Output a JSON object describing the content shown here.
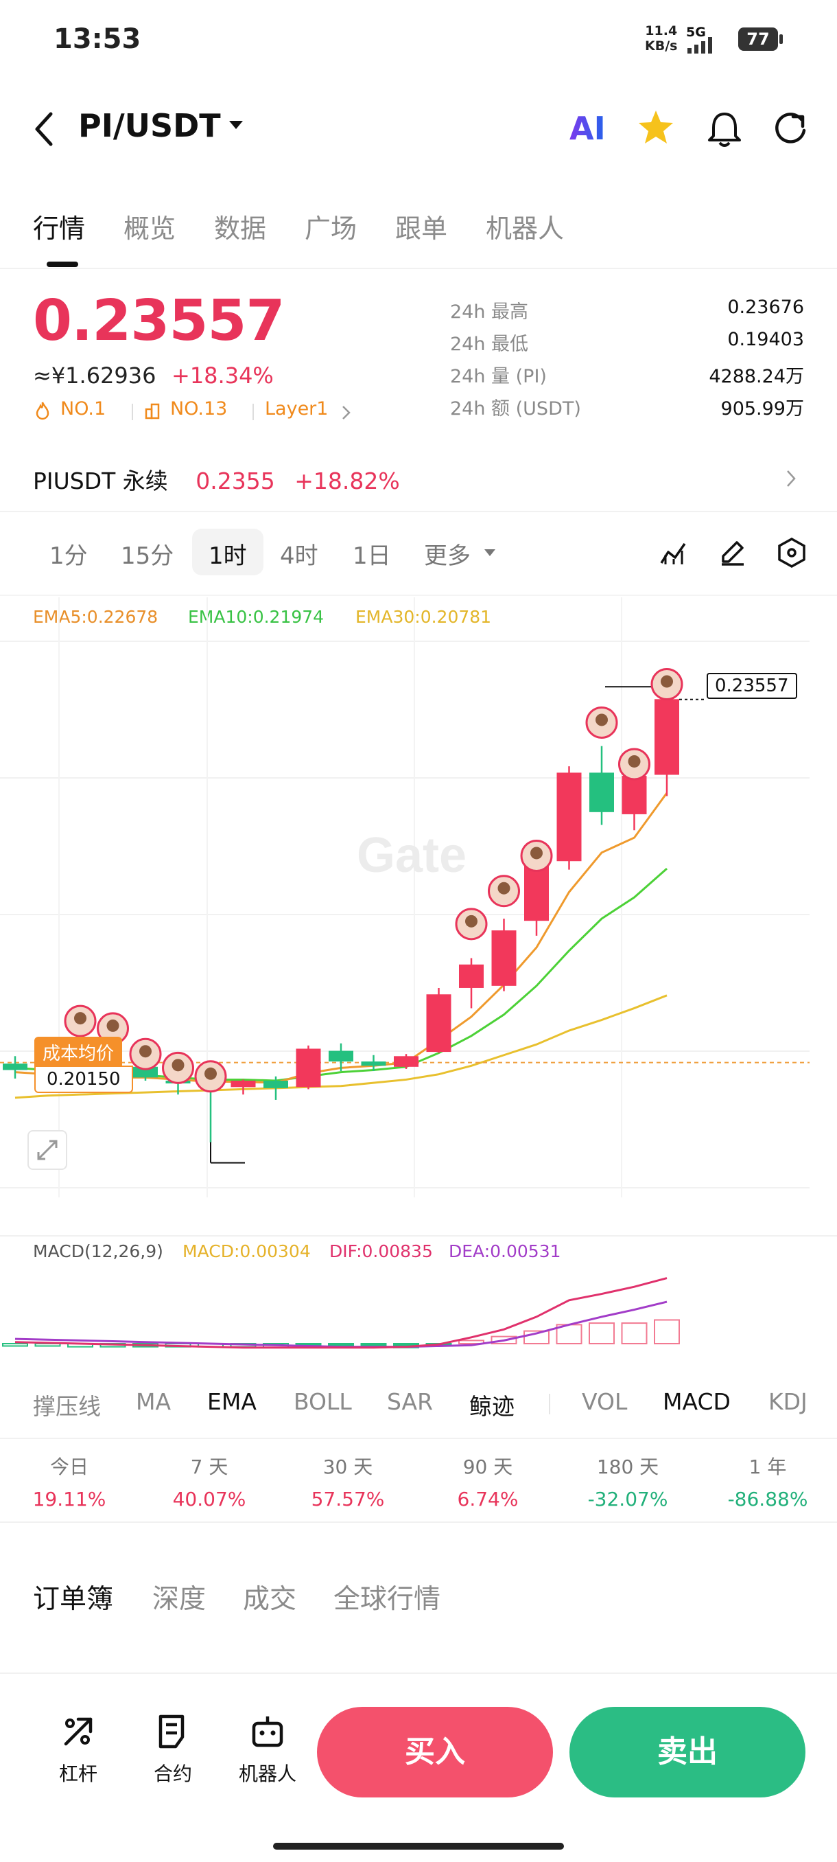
{
  "status_bar": {
    "time": "13:53",
    "net_speed_value": "11.4",
    "net_speed_unit": "KB/s",
    "network": "5G",
    "battery": "77"
  },
  "header": {
    "pair": "PI/USDT",
    "ai_label": "AI"
  },
  "tabs": [
    "行情",
    "概览",
    "数据",
    "广场",
    "跟单",
    "机器人"
  ],
  "price": {
    "last": "0.23557",
    "cny": "≈¥1.62936",
    "change": "+18.34%",
    "rank1": "NO.1",
    "rank2": "NO.13",
    "category": "Layer1"
  },
  "stats": [
    {
      "label": "24h  最高",
      "value": "0.23676"
    },
    {
      "label": "24h  最低",
      "value": "0.19403"
    },
    {
      "label": "24h  量 (PI)",
      "value": "4288.24万"
    },
    {
      "label": "24h  额 (USDT)",
      "value": "905.99万"
    }
  ],
  "perpetual": {
    "name": "PIUSDT 永续",
    "price": "0.2355",
    "change": "+18.82%"
  },
  "intervals": {
    "items": [
      "1分",
      "15分",
      "1时",
      "4时",
      "1日",
      "更多"
    ],
    "active": "1时"
  },
  "ema": {
    "ema5": "EMA5:0.22678",
    "ema10": "EMA10:0.21974",
    "ema30": "EMA30:0.20781"
  },
  "chart_data": {
    "type": "candlestick",
    "y_ticks": [
      "0.24103",
      "0.22821",
      "0.21539",
      "0.20257",
      "0.18975"
    ],
    "ylim": [
      0.18975,
      0.24103
    ],
    "x_ticks": [
      "03-06 17:00",
      "03-06 23:00",
      "03-07 05:00",
      "03-07 12:00"
    ],
    "candles": [
      {
        "o": 0.2014,
        "h": 0.2021,
        "l": 0.2,
        "c": 0.2008,
        "up": false
      },
      {
        "o": 0.2004,
        "h": 0.2016,
        "l": 0.1995,
        "c": 0.201,
        "up": false
      },
      {
        "o": 0.2008,
        "h": 0.202,
        "l": 0.199,
        "c": 0.2001,
        "up": false
      },
      {
        "o": 0.2001,
        "h": 0.201,
        "l": 0.1992,
        "c": 0.2,
        "up": false
      },
      {
        "o": 0.2011,
        "h": 0.202,
        "l": 0.1998,
        "c": 0.2001,
        "up": false
      },
      {
        "o": 0.1998,
        "h": 0.2006,
        "l": 0.1985,
        "c": 0.1996,
        "up": false
      },
      {
        "o": 0.1996,
        "h": 0.2003,
        "l": 0.194,
        "c": 0.1992,
        "up": false
      },
      {
        "o": 0.1992,
        "h": 0.1999,
        "l": 0.1985,
        "c": 0.1998,
        "up": true
      },
      {
        "o": 0.1998,
        "h": 0.2002,
        "l": 0.198,
        "c": 0.1991,
        "up": false
      },
      {
        "o": 0.1992,
        "h": 0.2031,
        "l": 0.199,
        "c": 0.2028,
        "up": true
      },
      {
        "o": 0.2026,
        "h": 0.2033,
        "l": 0.2007,
        "c": 0.2016,
        "up": false
      },
      {
        "o": 0.2012,
        "h": 0.2022,
        "l": 0.2007,
        "c": 0.2016,
        "up": false
      },
      {
        "o": 0.2011,
        "h": 0.2023,
        "l": 0.2009,
        "c": 0.2021,
        "up": true
      },
      {
        "o": 0.2025,
        "h": 0.2085,
        "l": 0.2024,
        "c": 0.2079,
        "up": true
      },
      {
        "o": 0.2085,
        "h": 0.2113,
        "l": 0.2066,
        "c": 0.2107,
        "up": true
      },
      {
        "o": 0.2087,
        "h": 0.215,
        "l": 0.2082,
        "c": 0.2139,
        "up": true
      },
      {
        "o": 0.2148,
        "h": 0.2219,
        "l": 0.2134,
        "c": 0.2207,
        "up": true
      },
      {
        "o": 0.2204,
        "h": 0.2293,
        "l": 0.2196,
        "c": 0.2287,
        "up": true
      },
      {
        "o": 0.225,
        "h": 0.2312,
        "l": 0.2238,
        "c": 0.2287,
        "up": false
      },
      {
        "o": 0.2284,
        "h": 0.2287,
        "l": 0.2233,
        "c": 0.2248,
        "up": true
      },
      {
        "o": 0.2285,
        "h": 0.2368,
        "l": 0.2265,
        "c": 0.2356,
        "up": true
      }
    ],
    "ema5": [
      0.2006,
      0.2004,
      0.2003,
      0.2001,
      0.2001,
      0.1999,
      0.1997,
      0.1997,
      0.1996,
      0.2005,
      0.201,
      0.2012,
      0.2015,
      0.2036,
      0.2058,
      0.2088,
      0.2123,
      0.2175,
      0.2212,
      0.2226,
      0.2268
    ],
    "ema10": [
      0.201,
      0.2008,
      0.2006,
      0.2004,
      0.2003,
      0.2001,
      0.1999,
      0.1999,
      0.1998,
      0.2002,
      0.2006,
      0.2008,
      0.2011,
      0.2024,
      0.204,
      0.206,
      0.2087,
      0.212,
      0.215,
      0.217,
      0.2197
    ],
    "ema30": [
      0.1982,
      0.1984,
      0.1985,
      0.1986,
      0.1987,
      0.1988,
      0.1989,
      0.199,
      0.1991,
      0.1992,
      0.1993,
      0.1996,
      0.1999,
      0.2004,
      0.2012,
      0.2022,
      0.2032,
      0.2045,
      0.2055,
      0.2066,
      0.2078
    ],
    "avg_cost_label": "成本均价",
    "avg_cost": "0.20150",
    "high_marker": "0.23676",
    "low_marker": "0.19403",
    "current_marker": "0.23557",
    "watermark": "Gate"
  },
  "macd": {
    "title": "MACD(12,26,9)",
    "macd": "MACD:0.00304",
    "dif": "DIF:0.00835",
    "dea": "DEA:0.00531",
    "y_ticks": [
      "0.00926",
      "-0.00174"
    ],
    "hist": [
      -0.0003,
      -0.0003,
      -0.0004,
      -0.0004,
      -0.0004,
      -0.0004,
      -0.0004,
      -0.0004,
      -0.0005,
      -0.0005,
      -0.0005,
      -0.0005,
      -0.0005,
      -0.0001,
      0.0004,
      0.0009,
      0.0016,
      0.0024,
      0.0026,
      0.0026,
      0.003
    ],
    "dif_line": [
      0.0002,
      0.0001,
      0.0,
      -0.0001,
      -0.0002,
      -0.0003,
      -0.0004,
      -0.0005,
      -0.0005,
      -0.0005,
      -0.0005,
      -0.0005,
      -0.0004,
      -0.0001,
      0.0008,
      0.0018,
      0.0034,
      0.0055,
      0.0063,
      0.0072,
      0.0083
    ],
    "dea_line": [
      0.0006,
      0.0005,
      0.0004,
      0.0003,
      0.0002,
      0.0001,
      0.0,
      -0.0001,
      -0.0002,
      -0.0003,
      -0.0004,
      -0.0004,
      -0.0004,
      -0.0003,
      -0.0002,
      0.0004,
      0.0013,
      0.0024,
      0.0034,
      0.0043,
      0.0053
    ]
  },
  "indicators": [
    "撑压线",
    "MA",
    "EMA",
    "BOLL",
    "SAR",
    "鲸迹",
    "VOL",
    "MACD",
    "KDJ"
  ],
  "periods": [
    {
      "label": "今日",
      "value": "19.11%",
      "trend": "up"
    },
    {
      "label": "7 天",
      "value": "40.07%",
      "trend": "up"
    },
    {
      "label": "30 天",
      "value": "57.57%",
      "trend": "up"
    },
    {
      "label": "90 天",
      "value": "6.74%",
      "trend": "up"
    },
    {
      "label": "180 天",
      "value": "-32.07%",
      "trend": "down"
    },
    {
      "label": "1 年",
      "value": "-86.88%",
      "trend": "down"
    }
  ],
  "book_tabs": [
    "订单簿",
    "深度",
    "成交",
    "全球行情"
  ],
  "bottom_nav": {
    "leverage": "杠杆",
    "futures": "合约",
    "bot": "机器人",
    "buy": "买入",
    "sell": "卖出"
  }
}
